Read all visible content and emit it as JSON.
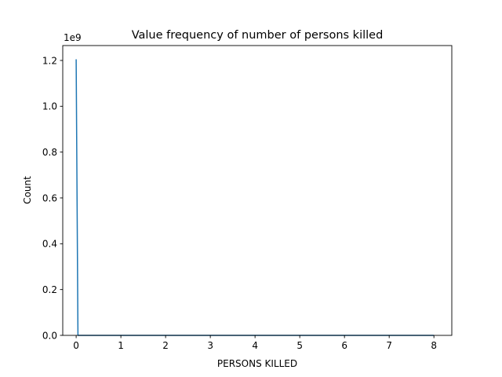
{
  "chart_data": {
    "type": "line",
    "title": "Value frequency of number of persons killed",
    "xlabel": "PERSONS KILLED",
    "ylabel": "Count",
    "y_offset_label": "1e9",
    "xlim": [
      -0.3,
      8.4
    ],
    "ylim": [
      0,
      1.265
    ],
    "x_ticks": [
      0,
      1,
      2,
      3,
      4,
      5,
      6,
      7,
      8
    ],
    "x_tick_labels": [
      "0",
      "1",
      "2",
      "3",
      "4",
      "5",
      "6",
      "7",
      "8"
    ],
    "y_ticks": [
      0.0,
      0.2,
      0.4,
      0.6,
      0.8,
      1.0,
      1.2
    ],
    "y_tick_labels": [
      "0.0",
      "0.2",
      "0.4",
      "0.6",
      "0.8",
      "1.0",
      "1.2"
    ],
    "grid": false,
    "line_color": "#1f77b4",
    "series": [
      {
        "x": [
          0,
          0.04,
          0.3,
          1,
          2,
          3,
          4,
          5,
          6,
          7,
          8
        ],
        "values": [
          1.205,
          0.0,
          0.0,
          0.0,
          0.0,
          0.0,
          0.0,
          0.0,
          0.0,
          0.0,
          0.0
        ]
      }
    ]
  }
}
